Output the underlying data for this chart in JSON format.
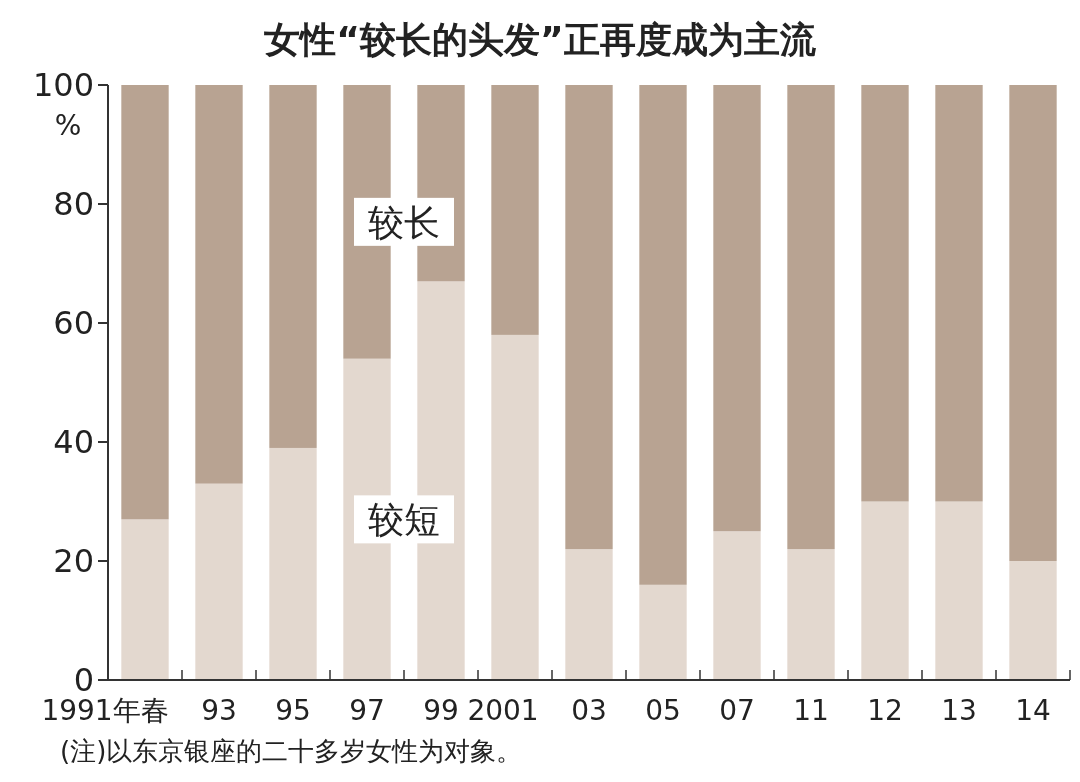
{
  "chart_data": {
    "type": "bar",
    "stacked": true,
    "title": "女性“较长的头发”正再度成为主流",
    "ylabel": "%",
    "categories": [
      "1991年春",
      "93",
      "95",
      "97",
      "99",
      "2001",
      "03",
      "05",
      "07",
      "11",
      "12",
      "13",
      "14"
    ],
    "series": [
      {
        "name": "较短",
        "color": "#e3d8cf",
        "values": [
          27,
          33,
          39,
          54,
          67,
          58,
          22,
          16,
          25,
          22,
          30,
          30,
          20
        ]
      },
      {
        "name": "较长",
        "color": "#b8a392",
        "values": [
          73,
          67,
          61,
          46,
          33,
          42,
          78,
          84,
          75,
          78,
          70,
          70,
          80
        ]
      }
    ],
    "ylim": [
      0,
      100
    ],
    "yticks": [
      0,
      20,
      40,
      60,
      80,
      100
    ],
    "annotations": [
      "(注)以东京银座的二十多岁女性为对象。"
    ]
  }
}
